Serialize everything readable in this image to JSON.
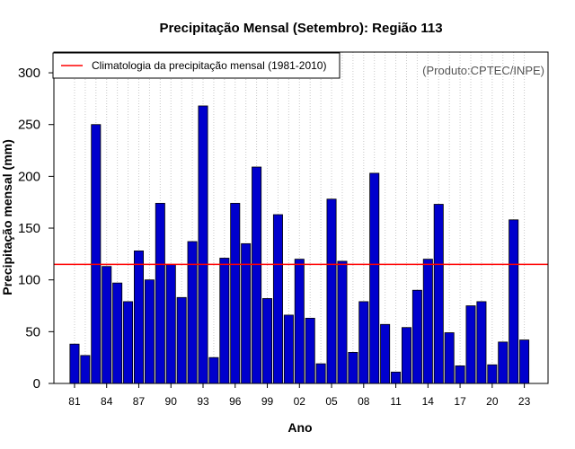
{
  "chart_data": {
    "type": "bar",
    "title": "Precipitação Mensal (Setembro): Região 113",
    "xlabel": "Ano",
    "ylabel": "Precipitação mensal (mm)",
    "ylim": [
      0,
      320
    ],
    "yticks": [
      0,
      50,
      100,
      150,
      200,
      250,
      300
    ],
    "xtick_labels": [
      "81",
      "84",
      "87",
      "90",
      "93",
      "96",
      "99",
      "02",
      "05",
      "08",
      "11",
      "14",
      "17",
      "20",
      "23"
    ],
    "categories": [
      "1981",
      "1982",
      "1983",
      "1984",
      "1985",
      "1986",
      "1987",
      "1988",
      "1989",
      "1990",
      "1991",
      "1992",
      "1993",
      "1994",
      "1995",
      "1996",
      "1997",
      "1998",
      "1999",
      "2000",
      "2001",
      "2002",
      "2003",
      "2004",
      "2005",
      "2006",
      "2007",
      "2008",
      "2009",
      "2010",
      "2011",
      "2012",
      "2013",
      "2014",
      "2015",
      "2016",
      "2017",
      "2018",
      "2019",
      "2020",
      "2021",
      "2022",
      "2023"
    ],
    "values": [
      38,
      27,
      250,
      113,
      97,
      79,
      128,
      100,
      174,
      115,
      83,
      137,
      268,
      25,
      121,
      174,
      135,
      209,
      82,
      163,
      66,
      120,
      63,
      19,
      178,
      118,
      30,
      79,
      203,
      57,
      11,
      54,
      90,
      120,
      173,
      49,
      17,
      75,
      79,
      18,
      40,
      158,
      42
    ],
    "bar_color": "#0000CD",
    "climatology": {
      "value": 115,
      "label": "Climatologia da precipitação mensal (1981-2010)",
      "color": "#FF0000"
    },
    "legend_position": "top-left",
    "grid": "vertical-dotted",
    "source_note": "(Produto:CPTEC/INPE)"
  }
}
